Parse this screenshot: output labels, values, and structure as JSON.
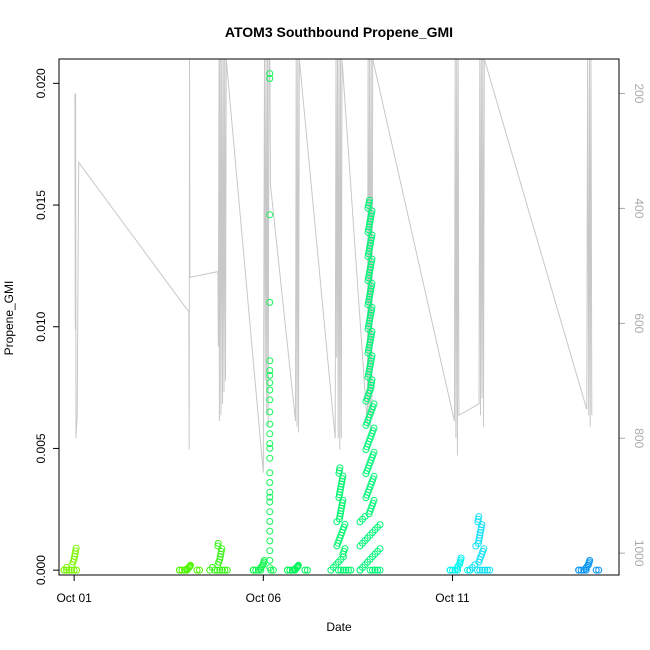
{
  "chart_data": {
    "type": "scatter",
    "title": "ATOM3 Southbound Propene_GMI",
    "xlabel": "Date",
    "ylabel": "Propene_GMI",
    "x_unit": "days since Oct 01",
    "xlim": [
      -0.4,
      14.4
    ],
    "ylim": [
      -0.0002,
      0.021
    ],
    "x_ticks": [
      {
        "value": 0,
        "label": "Oct 01"
      },
      {
        "value": 5,
        "label": "Oct 06"
      },
      {
        "value": 10,
        "label": "Oct 11"
      }
    ],
    "y_ticks": [
      {
        "value": 0.0,
        "label": "0.000"
      },
      {
        "value": 0.005,
        "label": "0.005"
      },
      {
        "value": 0.01,
        "label": "0.010"
      },
      {
        "value": 0.015,
        "label": "0.015"
      },
      {
        "value": 0.02,
        "label": "0.020"
      }
    ],
    "y2_ticks": [
      {
        "value": 200,
        "label": "200"
      },
      {
        "value": 400,
        "label": "400"
      },
      {
        "value": 600,
        "label": "600"
      },
      {
        "value": 800,
        "label": "800"
      },
      {
        "value": 1000,
        "label": "1000"
      }
    ],
    "y2lim": [
      1038,
      140
    ],
    "y2_inverted": true,
    "grid": false,
    "legend": "none",
    "line_color": "#c8c8c8",
    "point_groups": [
      {
        "x": 0.0,
        "ymax": 0.0009,
        "color": "#7cf500",
        "cluster": true
      },
      {
        "x": 3.05,
        "ymax": 0.0002,
        "color": "#50f500",
        "cluster": true
      },
      {
        "x": 3.85,
        "ymax": 0.0011,
        "color": "#3cf51a",
        "cluster": true
      },
      {
        "x": 5.0,
        "ymax": 0.0004,
        "color": "#14f550",
        "cluster": true
      },
      {
        "x": 5.17,
        "values": [
          0.0204,
          0.0202,
          0.0146,
          0.011,
          0.0086,
          0.0082,
          0.008,
          0.0077,
          0.0074,
          0.007,
          0.0065,
          0.006,
          0.0056,
          0.0052,
          0.005,
          0.0046,
          0.004,
          0.0036,
          0.0032,
          0.003,
          0.0028,
          0.0024,
          0.002,
          0.0016,
          0.0012,
          0.0008,
          0.0004,
          0.0001
        ],
        "color": "#14f55a",
        "cluster": false
      },
      {
        "x": 5.9,
        "ymax": 0.0002,
        "color": "#00f55a",
        "cluster": true
      },
      {
        "x": 7.05,
        "ymax": 0.0042,
        "color": "#00f56e",
        "cluster": true
      },
      {
        "x": 7.82,
        "ymax": 0.0152,
        "color": "#00f578",
        "cluster": true
      },
      {
        "x": 10.2,
        "ymax": 0.0005,
        "color": "#00f5f0",
        "cluster": true
      },
      {
        "x": 10.72,
        "ymax": 0.0022,
        "color": "#14e1f5",
        "cluster": true
      },
      {
        "x": 13.6,
        "ymax": 0.0004,
        "color": "#0a96f5",
        "cluster": true
      }
    ],
    "altitude_trace": [
      [
        0.02,
        200
      ],
      [
        0.03,
        610
      ],
      [
        0.04,
        200
      ],
      [
        0.05,
        800
      ],
      [
        0.08,
        760
      ],
      [
        0.12,
        320
      ],
      [
        3.03,
        580
      ],
      [
        3.04,
        820
      ],
      [
        3.05,
        130
      ],
      [
        3.06,
        520
      ],
      [
        3.8,
        510
      ],
      [
        3.81,
        640
      ],
      [
        3.83,
        130
      ],
      [
        3.84,
        770
      ],
      [
        3.86,
        130
      ],
      [
        3.88,
        760
      ],
      [
        3.9,
        130
      ],
      [
        3.92,
        740
      ],
      [
        3.94,
        130
      ],
      [
        3.96,
        720
      ],
      [
        3.98,
        130
      ],
      [
        4.0,
        700
      ],
      [
        4.02,
        130
      ],
      [
        5.0,
        860
      ],
      [
        5.03,
        130
      ],
      [
        5.05,
        700
      ],
      [
        5.07,
        130
      ],
      [
        5.09,
        760
      ],
      [
        5.11,
        130
      ],
      [
        5.13,
        780
      ],
      [
        5.15,
        130
      ],
      [
        5.17,
        130
      ],
      [
        5.19,
        360
      ],
      [
        5.85,
        770
      ],
      [
        5.87,
        130
      ],
      [
        5.89,
        780
      ],
      [
        5.91,
        130
      ],
      [
        5.93,
        790
      ],
      [
        5.95,
        130
      ],
      [
        6.9,
        800
      ],
      [
        6.92,
        130
      ],
      [
        6.94,
        660
      ],
      [
        6.96,
        130
      ],
      [
        6.98,
        800
      ],
      [
        7.0,
        130
      ],
      [
        7.02,
        820
      ],
      [
        7.04,
        130
      ],
      [
        7.06,
        800
      ],
      [
        7.08,
        130
      ],
      [
        7.75,
        780
      ],
      [
        7.77,
        130
      ],
      [
        7.79,
        760
      ],
      [
        7.81,
        130
      ],
      [
        7.83,
        790
      ],
      [
        7.85,
        130
      ],
      [
        7.87,
        760
      ],
      [
        7.89,
        130
      ],
      [
        10.05,
        770
      ],
      [
        10.07,
        130
      ],
      [
        10.09,
        800
      ],
      [
        10.11,
        130
      ],
      [
        10.13,
        830
      ],
      [
        10.15,
        130
      ],
      [
        10.17,
        760
      ],
      [
        10.7,
        740
      ],
      [
        10.72,
        130
      ],
      [
        10.74,
        760
      ],
      [
        10.76,
        130
      ],
      [
        10.78,
        730
      ],
      [
        10.8,
        130
      ],
      [
        10.82,
        780
      ],
      [
        10.84,
        130
      ],
      [
        13.55,
        750
      ],
      [
        13.57,
        130
      ],
      [
        13.6,
        760
      ],
      [
        13.62,
        130
      ],
      [
        13.64,
        780
      ],
      [
        13.66,
        130
      ],
      [
        13.68,
        760
      ]
    ]
  }
}
